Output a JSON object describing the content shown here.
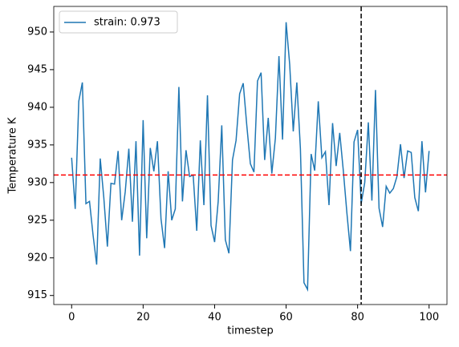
{
  "chart_data": {
    "type": "line",
    "xlabel": "timestep",
    "ylabel": "Temperature K",
    "x": [
      0,
      1,
      2,
      3,
      4,
      5,
      6,
      7,
      8,
      9,
      10,
      11,
      12,
      13,
      14,
      15,
      16,
      17,
      18,
      19,
      20,
      21,
      22,
      23,
      24,
      25,
      26,
      27,
      28,
      29,
      30,
      31,
      32,
      33,
      34,
      35,
      36,
      37,
      38,
      39,
      40,
      41,
      42,
      43,
      44,
      45,
      46,
      47,
      48,
      49,
      50,
      51,
      52,
      53,
      54,
      55,
      56,
      57,
      58,
      59,
      60,
      61,
      62,
      63,
      64,
      65,
      66,
      67,
      68,
      69,
      70,
      71,
      72,
      73,
      74,
      75,
      76,
      77,
      78,
      79,
      80,
      81,
      82,
      83,
      84,
      85,
      86,
      87,
      88,
      89,
      90,
      91,
      92,
      93,
      94,
      95,
      96,
      97,
      98,
      99,
      100
    ],
    "series": [
      {
        "name": "strain: 0.973",
        "color": "#1f77b4",
        "values": [
          933.3,
          926.5,
          940.8,
          943.3,
          927.2,
          927.5,
          923,
          919.1,
          933.2,
          928,
          921.5,
          929.9,
          929.8,
          934.2,
          925,
          928.8,
          934.5,
          924.8,
          935.5,
          920.3,
          938.3,
          922.6,
          934.6,
          931.5,
          935.5,
          925.2,
          921.3,
          931.5,
          925,
          926.5,
          942.7,
          927.5,
          934.3,
          930.8,
          931,
          923.6,
          935.6,
          927,
          941.6,
          924.3,
          922.1,
          927.5,
          937.6,
          922.4,
          920.6,
          933,
          935.6,
          941.8,
          943.2,
          937.6,
          932.5,
          931.4,
          943.5,
          944.6,
          933,
          938.6,
          931.2,
          935.9,
          946.8,
          935.7,
          951.3,
          945.7,
          936.8,
          943.3,
          934.5,
          916.7,
          915.8,
          933.8,
          931.6,
          940.8,
          933.3,
          934.1,
          927,
          937.9,
          932.2,
          936.6,
          931.6,
          926,
          920.9,
          935.4,
          937,
          927.2,
          930,
          938,
          927.6,
          942.3,
          926.6,
          924.1,
          929.5,
          928.6,
          929.2,
          930.8,
          935.1,
          930.6,
          934.2,
          934,
          928,
          926.2,
          935.5,
          928.7,
          934.2
        ]
      }
    ],
    "hline": {
      "value": 931,
      "color": "#ff0000"
    },
    "vline": {
      "value": 81,
      "color": "#000000"
    },
    "xlim": [
      -5,
      105
    ],
    "ylim": [
      913.8,
      953.4
    ],
    "xticks": [
      0,
      20,
      40,
      60,
      80,
      100
    ],
    "yticks": [
      915,
      920,
      925,
      930,
      935,
      940,
      945,
      950
    ],
    "legend": "upper left"
  }
}
